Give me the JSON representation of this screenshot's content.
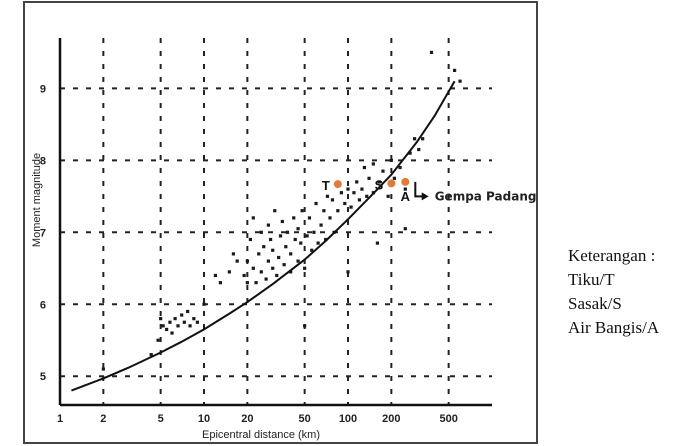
{
  "chart_data": {
    "type": "scatter",
    "xlabel": "Epicentral distance (km)",
    "ylabel": "Moment magnitude",
    "x_scale": "log",
    "xlim": [
      1,
      1000
    ],
    "ylim": [
      4.6,
      9.7
    ],
    "x_ticks": [
      1,
      2,
      5,
      10,
      20,
      50,
      100,
      200,
      500
    ],
    "y_ticks": [
      5,
      6,
      7,
      8,
      9
    ],
    "grid": "dashed",
    "points": [
      [
        2,
        5.1
      ],
      [
        4.3,
        5.3
      ],
      [
        4.8,
        5.5
      ],
      [
        5,
        5.8
      ],
      [
        5.2,
        5.7
      ],
      [
        5.5,
        5.65
      ],
      [
        5.8,
        5.75
      ],
      [
        6,
        5.6
      ],
      [
        6.3,
        5.8
      ],
      [
        6.6,
        5.7
      ],
      [
        7,
        5.85
      ],
      [
        7.3,
        5.75
      ],
      [
        7.7,
        5.9
      ],
      [
        8,
        5.7
      ],
      [
        8.5,
        5.8
      ],
      [
        9,
        5.75
      ],
      [
        10,
        6.0
      ],
      [
        12,
        6.4
      ],
      [
        13,
        6.3
      ],
      [
        15,
        6.45
      ],
      [
        16,
        6.7
      ],
      [
        17,
        6.6
      ],
      [
        19,
        6.4
      ],
      [
        20,
        6.3
      ],
      [
        20,
        6.6
      ],
      [
        21,
        6.9
      ],
      [
        22,
        6.5
      ],
      [
        22,
        7.2
      ],
      [
        23,
        6.3
      ],
      [
        24,
        6.7
      ],
      [
        25,
        6.45
      ],
      [
        25,
        7.0
      ],
      [
        26,
        6.8
      ],
      [
        27,
        6.35
      ],
      [
        28,
        6.6
      ],
      [
        28,
        7.1
      ],
      [
        29,
        6.9
      ],
      [
        30,
        6.5
      ],
      [
        30,
        6.75
      ],
      [
        31,
        7.3
      ],
      [
        32,
        6.4
      ],
      [
        33,
        6.65
      ],
      [
        34,
        6.95
      ],
      [
        35,
        7.15
      ],
      [
        36,
        6.55
      ],
      [
        37,
        6.8
      ],
      [
        38,
        7.0
      ],
      [
        40,
        6.45
      ],
      [
        40,
        6.7
      ],
      [
        42,
        7.2
      ],
      [
        43,
        6.9
      ],
      [
        45,
        6.6
      ],
      [
        45,
        7.05
      ],
      [
        47,
        6.85
      ],
      [
        48,
        7.3
      ],
      [
        50,
        6.5
      ],
      [
        50,
        5.7
      ],
      [
        52,
        6.95
      ],
      [
        54,
        7.2
      ],
      [
        56,
        6.75
      ],
      [
        58,
        7.0
      ],
      [
        60,
        7.4
      ],
      [
        62,
        6.85
      ],
      [
        65,
        7.1
      ],
      [
        68,
        7.3
      ],
      [
        70,
        6.9
      ],
      [
        72,
        7.5
      ],
      [
        75,
        7.2
      ],
      [
        78,
        7.45
      ],
      [
        80,
        7.0
      ],
      [
        85,
        7.3
      ],
      [
        90,
        7.55
      ],
      [
        95,
        7.4
      ],
      [
        100,
        6.45
      ],
      [
        100,
        7.6
      ],
      [
        105,
        7.35
      ],
      [
        110,
        7.55
      ],
      [
        115,
        7.7
      ],
      [
        120,
        7.45
      ],
      [
        125,
        7.6
      ],
      [
        130,
        7.9
      ],
      [
        135,
        7.5
      ],
      [
        140,
        7.75
      ],
      [
        150,
        7.55
      ],
      [
        150,
        7.95
      ],
      [
        160,
        6.85
      ],
      [
        165,
        7.7
      ],
      [
        175,
        7.85
      ],
      [
        190,
        7.5
      ],
      [
        200,
        8.0
      ],
      [
        210,
        7.75
      ],
      [
        230,
        7.9
      ],
      [
        250,
        7.6
      ],
      [
        270,
        8.1
      ],
      [
        290,
        8.3
      ],
      [
        310,
        8.15
      ],
      [
        330,
        8.3
      ],
      [
        380,
        9.5
      ],
      [
        550,
        9.25
      ],
      [
        600,
        9.1
      ],
      [
        250,
        7.05
      ]
    ],
    "curve": [
      [
        1.2,
        4.8
      ],
      [
        2,
        4.97
      ],
      [
        3,
        5.12
      ],
      [
        5,
        5.33
      ],
      [
        7,
        5.48
      ],
      [
        10,
        5.65
      ],
      [
        15,
        5.87
      ],
      [
        20,
        6.03
      ],
      [
        30,
        6.28
      ],
      [
        50,
        6.62
      ],
      [
        70,
        6.88
      ],
      [
        100,
        7.18
      ],
      [
        150,
        7.54
      ],
      [
        200,
        7.8
      ],
      [
        300,
        8.25
      ],
      [
        400,
        8.62
      ],
      [
        550,
        9.1
      ]
    ],
    "highlighted": [
      {
        "label": "T",
        "x": 85,
        "y": 7.67,
        "color": "#e07b39"
      },
      {
        "label": "S",
        "x": 200,
        "y": 7.68,
        "color": "#e07b39"
      },
      {
        "label": "A",
        "x": 250,
        "y": 7.7,
        "color": "#e07b39"
      }
    ],
    "annotation": {
      "text": "Gempa Padang",
      "x": 300,
      "y": 7.5
    }
  },
  "legend": {
    "title": "Keterangan :",
    "items": [
      "Tiku/T",
      "Sasak/S",
      "Air Bangis/A"
    ]
  }
}
